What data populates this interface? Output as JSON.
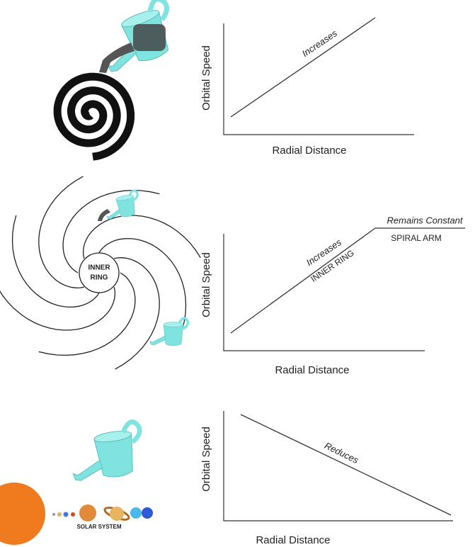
{
  "panels": [
    {
      "graph": {
        "y_label": "Orbital Speed",
        "x_label": "Radial Distance",
        "annotations": [
          "Increases"
        ]
      }
    },
    {
      "illustration": {
        "labels": [
          "INNER",
          "RING"
        ]
      },
      "graph": {
        "y_label": "Orbital Speed",
        "x_label": "Radial Distance",
        "annotations": [
          "Increases",
          "INNER RING",
          "Remains Constant",
          "SPIRAL ARM"
        ]
      }
    },
    {
      "illustration": {
        "labels": [
          "SOLAR SYSTEM"
        ]
      },
      "graph": {
        "y_label": "Orbital Speed",
        "x_label": "Radial Distance",
        "annotations": [
          "Reduces"
        ]
      }
    }
  ]
}
